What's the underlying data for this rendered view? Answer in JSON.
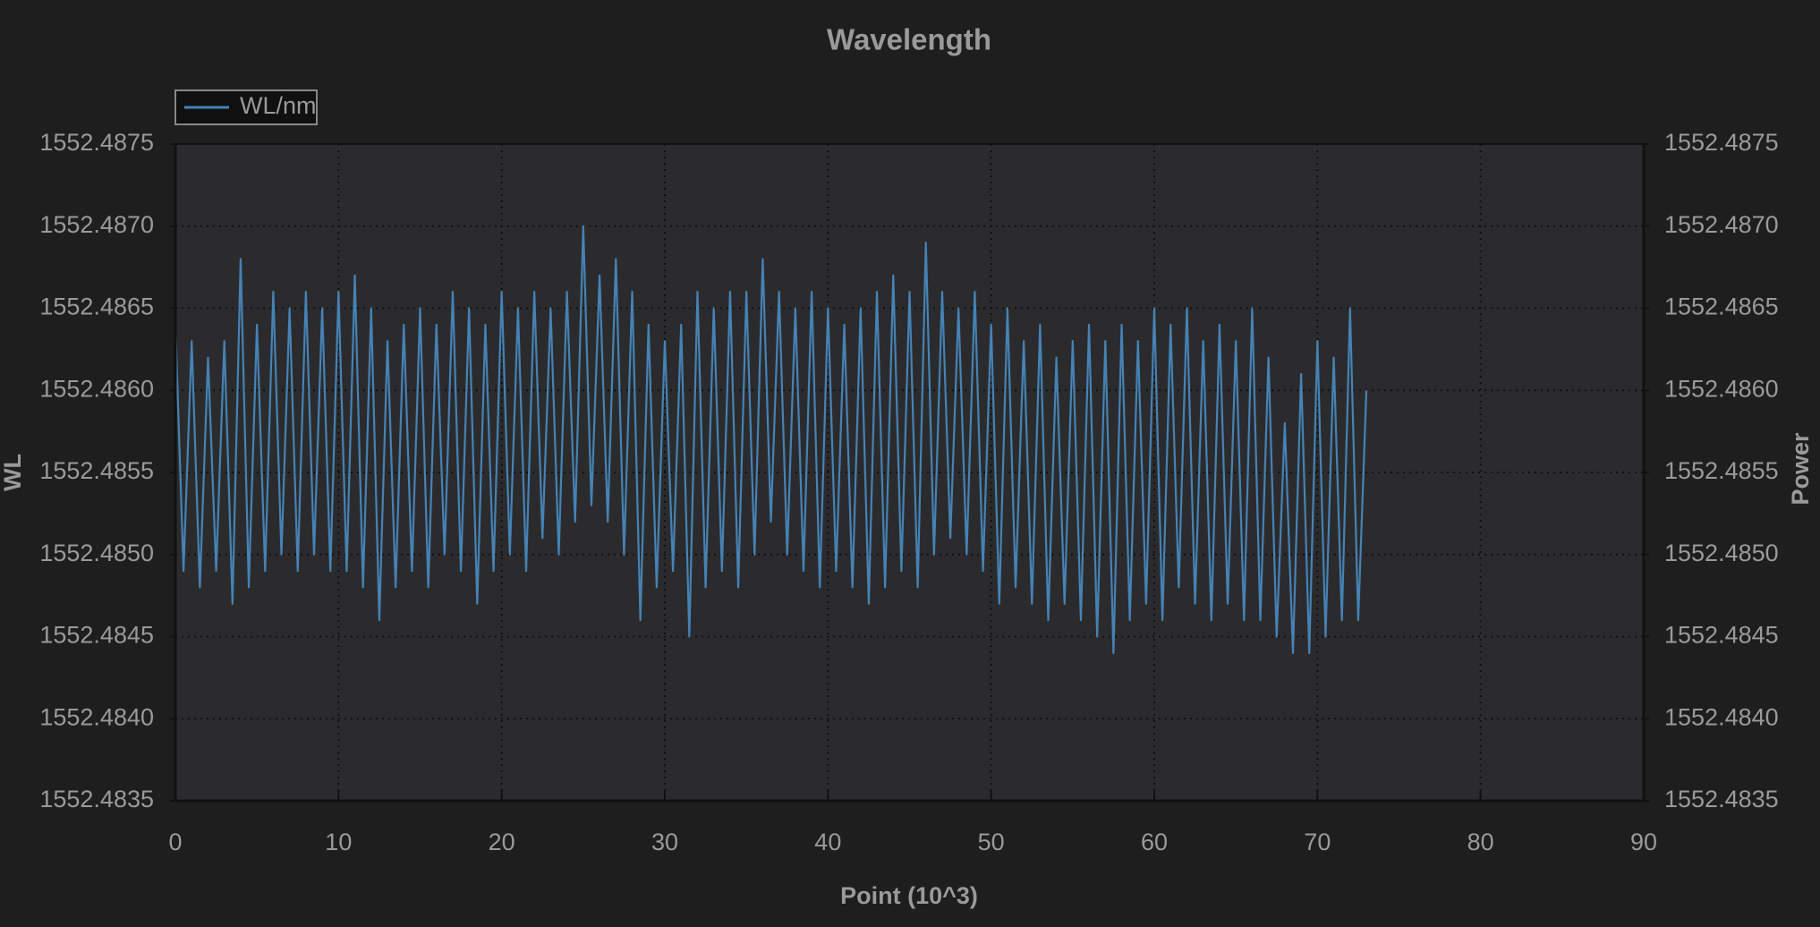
{
  "chart_data": {
    "type": "line",
    "title": "Wavelength",
    "x_label": "Point (10^3)",
    "y_label": "WL",
    "y2_label": "Power",
    "xlim": [
      0,
      90
    ],
    "xticks": [
      0,
      10,
      20,
      30,
      40,
      50,
      60,
      70,
      80,
      90
    ],
    "ylim": [
      1552.4835,
      1552.4875
    ],
    "yticks": [
      1552.4835,
      {
        "value": 1552.484,
        "label": "1552.4840"
      },
      1552.4845,
      {
        "value": 1552.485,
        "label": "1552.4850"
      },
      1552.4855,
      {
        "value": 1552.486,
        "label": "1552.4860"
      },
      1552.4865,
      {
        "value": 1552.487,
        "label": "1552.4870"
      },
      1552.4875
    ],
    "y2lim": [
      1552.4835,
      1552.4875
    ],
    "y2ticks": [
      1552.4835,
      {
        "value": 1552.484,
        "label": "1552.4840"
      },
      1552.4845,
      {
        "value": 1552.485,
        "label": "1552.4850"
      },
      1552.4855,
      {
        "value": 1552.486,
        "label": "1552.4860"
      },
      1552.4865,
      {
        "value": 1552.487,
        "label": "1552.4870"
      },
      1552.4875
    ],
    "grid": true,
    "legend": "top-left",
    "x": [
      0,
      0.5,
      1,
      1.5,
      2,
      2.5,
      3,
      3.5,
      4,
      4.5,
      5,
      5.5,
      6,
      6.5,
      7,
      7.5,
      8,
      8.5,
      9,
      9.5,
      10,
      10.5,
      11,
      11.5,
      12,
      12.5,
      13,
      13.5,
      14,
      14.5,
      15,
      15.5,
      16,
      16.5,
      17,
      17.5,
      18,
      18.5,
      19,
      19.5,
      20,
      20.5,
      21,
      21.5,
      22,
      22.5,
      23,
      23.5,
      24,
      24.5,
      25,
      25.5,
      26,
      26.5,
      27,
      27.5,
      28,
      28.5,
      29,
      29.5,
      30,
      30.5,
      31,
      31.5,
      32,
      32.5,
      33,
      33.5,
      34,
      34.5,
      35,
      35.5,
      36,
      36.5,
      37,
      37.5,
      38,
      38.5,
      39,
      39.5,
      40,
      40.5,
      41,
      41.5,
      42,
      42.5,
      43,
      43.5,
      44,
      44.5,
      45,
      45.5,
      46,
      46.5,
      47,
      47.5,
      48,
      48.5,
      49,
      49.5,
      50,
      50.5,
      51,
      51.5,
      52,
      52.5,
      53,
      53.5,
      54,
      54.5,
      55,
      55.5,
      56,
      56.5,
      57,
      57.5,
      58,
      58.5,
      59,
      59.5,
      60,
      60.5,
      61,
      61.5,
      62,
      62.5,
      63,
      63.5,
      64,
      64.5,
      65,
      65.5,
      66,
      66.5,
      67,
      67.5,
      68,
      68.5,
      69,
      69.5,
      70,
      70.5,
      71,
      71.5,
      72,
      72.5,
      73
    ],
    "series": [
      {
        "name": "WL/nm",
        "color": "#4682b4",
        "values": [
          1552.4864,
          1552.4849,
          1552.4863,
          1552.4848,
          1552.4862,
          1552.4849,
          1552.4863,
          1552.4847,
          1552.4868,
          1552.4848,
          1552.4864,
          1552.4849,
          1552.4866,
          1552.485,
          1552.4865,
          1552.4849,
          1552.4866,
          1552.485,
          1552.4865,
          1552.4849,
          1552.4866,
          1552.4849,
          1552.4867,
          1552.4848,
          1552.4865,
          1552.4846,
          1552.4863,
          1552.4848,
          1552.4864,
          1552.4849,
          1552.4865,
          1552.4848,
          1552.4864,
          1552.485,
          1552.4866,
          1552.4849,
          1552.4865,
          1552.4847,
          1552.4864,
          1552.4849,
          1552.4866,
          1552.485,
          1552.4865,
          1552.4849,
          1552.4866,
          1552.4851,
          1552.4865,
          1552.485,
          1552.4866,
          1552.4852,
          1552.487,
          1552.4853,
          1552.4867,
          1552.4852,
          1552.4868,
          1552.485,
          1552.4866,
          1552.4846,
          1552.4864,
          1552.4848,
          1552.4863,
          1552.4849,
          1552.4864,
          1552.4845,
          1552.4866,
          1552.4848,
          1552.4865,
          1552.4849,
          1552.4866,
          1552.4848,
          1552.4866,
          1552.485,
          1552.4868,
          1552.4852,
          1552.4866,
          1552.485,
          1552.4865,
          1552.4849,
          1552.4866,
          1552.4848,
          1552.4865,
          1552.4849,
          1552.4864,
          1552.4848,
          1552.4865,
          1552.4847,
          1552.4866,
          1552.4848,
          1552.4867,
          1552.4849,
          1552.4866,
          1552.4848,
          1552.4869,
          1552.485,
          1552.4866,
          1552.4851,
          1552.4865,
          1552.485,
          1552.4866,
          1552.4849,
          1552.4864,
          1552.4847,
          1552.4865,
          1552.4848,
          1552.4863,
          1552.4847,
          1552.4864,
          1552.4846,
          1552.4862,
          1552.4847,
          1552.4863,
          1552.4846,
          1552.4864,
          1552.4845,
          1552.4863,
          1552.4844,
          1552.4864,
          1552.4846,
          1552.4863,
          1552.4847,
          1552.4865,
          1552.4846,
          1552.4864,
          1552.4848,
          1552.4865,
          1552.4847,
          1552.4863,
          1552.4846,
          1552.4864,
          1552.4847,
          1552.4863,
          1552.4846,
          1552.4865,
          1552.4846,
          1552.4862,
          1552.4845,
          1552.4858,
          1552.4844,
          1552.4861,
          1552.4844,
          1552.4863,
          1552.4845,
          1552.4862,
          1552.4846,
          1552.4865,
          1552.4846,
          1552.486
        ]
      }
    ]
  }
}
